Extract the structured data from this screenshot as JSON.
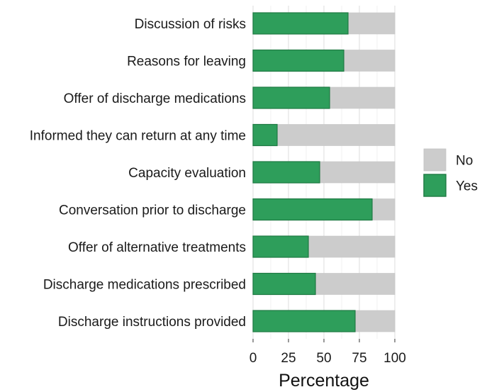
{
  "chart_data": {
    "type": "bar",
    "orientation": "horizontal",
    "stacked": true,
    "categories": [
      "Discussion of risks",
      "Reasons for leaving",
      "Offer of discharge medications",
      "Informed they can return at any time",
      "Capacity evaluation",
      "Conversation prior to discharge",
      "Offer of alternative treatments",
      "Discharge medications prescribed",
      "Discharge instructions provided"
    ],
    "series": [
      {
        "name": "Yes",
        "color": "#2e9e5b",
        "values": [
          67,
          64,
          54,
          17,
          47,
          84,
          39,
          44,
          72
        ]
      },
      {
        "name": "No",
        "color": "#cccccc",
        "values": [
          33,
          36,
          46,
          83,
          53,
          16,
          61,
          56,
          28
        ]
      }
    ],
    "xlabel": "Percentage",
    "ylabel": "",
    "xlim": [
      0,
      100
    ],
    "xticks": [
      "0",
      "25",
      "50",
      "75",
      "100"
    ],
    "grid": true,
    "legend": {
      "position": "right",
      "entries": [
        "No",
        "Yes"
      ]
    }
  }
}
